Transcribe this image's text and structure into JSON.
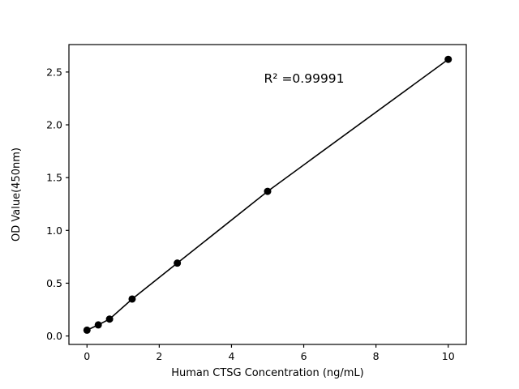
{
  "figure": {
    "background": "#ffffff"
  },
  "chart_data": {
    "type": "scatter",
    "title": "",
    "xlabel": "Human CTSG Concentration (ng/mL)",
    "ylabel": "OD Value(450nm)",
    "annotation": "R² =0.99991",
    "x": [
      0,
      0.3125,
      0.625,
      1.25,
      2.5,
      5,
      10
    ],
    "y": [
      0.055,
      0.105,
      0.16,
      0.35,
      0.69,
      1.37,
      2.62
    ],
    "xlim": [
      -0.5,
      10.5
    ],
    "ylim": [
      -0.08,
      2.76
    ],
    "x_ticks": [
      0,
      2,
      4,
      6,
      8,
      10
    ],
    "y_ticks": [
      0.0,
      0.5,
      1.0,
      1.5,
      2.0,
      2.5
    ],
    "grid": false,
    "legend": "none",
    "line_color": "#000000",
    "marker_color": "#000000",
    "axis_color": "#000000",
    "annotation_pos": {
      "x": 4.9,
      "y": 2.4
    }
  }
}
